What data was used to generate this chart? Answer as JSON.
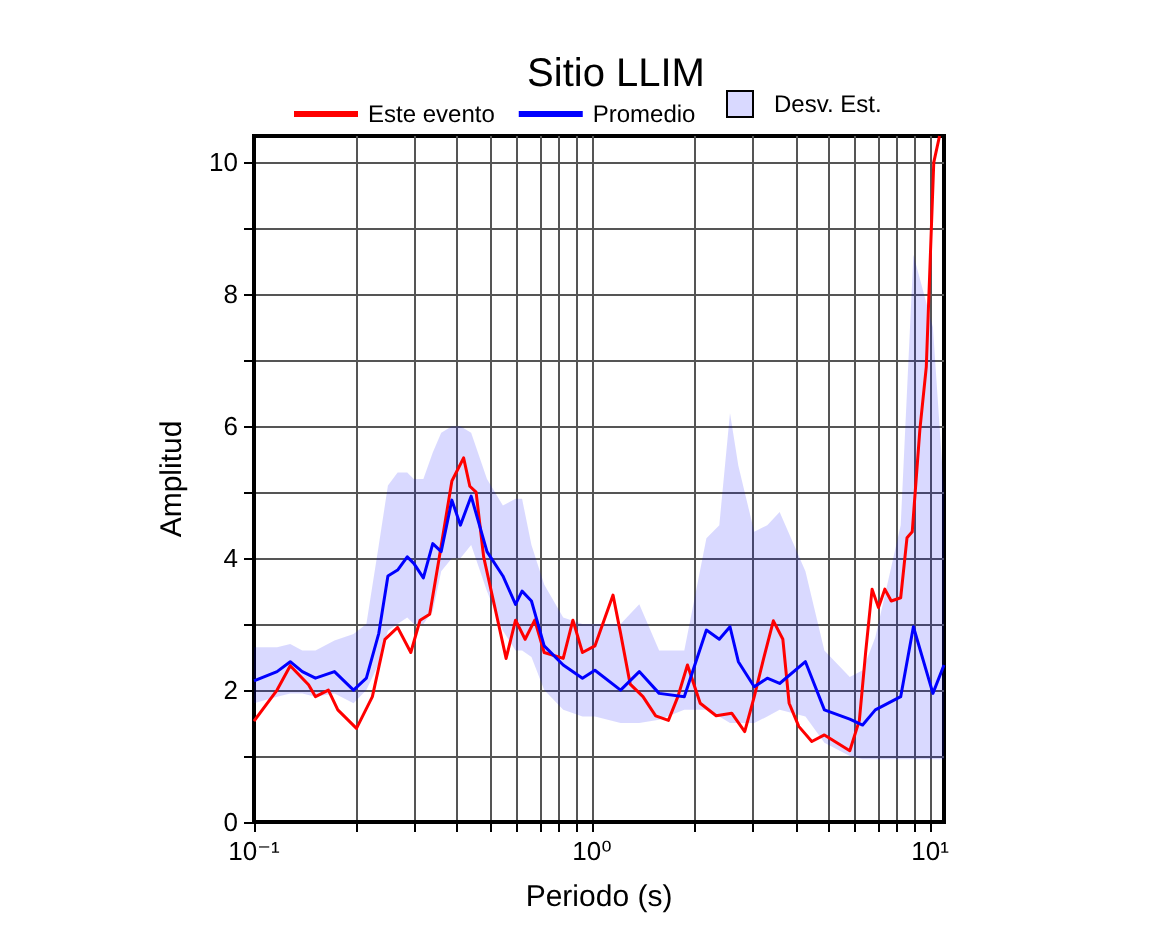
{
  "chart_data": {
    "type": "line",
    "title": "Sitio LLIM",
    "xlabel": "Periodo (s)",
    "ylabel": "Amplitud",
    "log": "x",
    "grid": true,
    "legend": "top",
    "marker": "none",
    "line_style": "solid",
    "xlim": [
      0.1,
      11
    ],
    "ylim": [
      0,
      10.4
    ],
    "xticks": [
      {
        "value": 0.1,
        "label": "10⁻¹"
      },
      {
        "value": 0.2,
        "label": null
      },
      {
        "value": 0.3,
        "label": null
      },
      {
        "value": 0.4,
        "label": null
      },
      {
        "value": 0.5,
        "label": null
      },
      {
        "value": 0.6,
        "label": null
      },
      {
        "value": 0.7,
        "label": null
      },
      {
        "value": 0.8,
        "label": null
      },
      {
        "value": 0.9,
        "label": null
      },
      {
        "value": 1,
        "label": "10⁰"
      },
      {
        "value": 2,
        "label": null
      },
      {
        "value": 3,
        "label": null
      },
      {
        "value": 4,
        "label": null
      },
      {
        "value": 5,
        "label": null
      },
      {
        "value": 6,
        "label": null
      },
      {
        "value": 7,
        "label": null
      },
      {
        "value": 8,
        "label": null
      },
      {
        "value": 9,
        "label": null
      },
      {
        "value": 10,
        "label": "10¹"
      }
    ],
    "yticks": [
      0,
      {
        "value": 1,
        "label": null
      },
      2,
      {
        "value": 3,
        "label": null
      },
      4,
      {
        "value": 5,
        "label": null
      },
      6,
      {
        "value": 7,
        "label": null
      },
      8,
      {
        "value": 9,
        "label": null
      },
      10
    ],
    "series": [
      {
        "name": "Este evento",
        "color": "#ff0000",
        "x": [
          0.1,
          0.117,
          0.128,
          0.145,
          0.152,
          0.166,
          0.177,
          0.201,
          0.224,
          0.244,
          0.266,
          0.291,
          0.31,
          0.331,
          0.353,
          0.385,
          0.417,
          0.435,
          0.454,
          0.478,
          0.511,
          0.557,
          0.594,
          0.634,
          0.677,
          0.722,
          0.822,
          0.878,
          0.937,
          1.02,
          1.154,
          1.215,
          1.297,
          1.415,
          1.543,
          1.683,
          1.795,
          1.916,
          2.09,
          2.33,
          2.59,
          2.83,
          3.02,
          3.22,
          3.44,
          3.67,
          3.83,
          4.09,
          4.47,
          4.87,
          5.79,
          6.18,
          6.45,
          6.74,
          7.04,
          7.35,
          7.68,
          8.19,
          8.55,
          8.86,
          9.33,
          9.75,
          10.26,
          10.67
        ],
        "values": [
          1.53,
          2.0,
          2.37,
          2.08,
          1.9,
          2.0,
          1.7,
          1.42,
          1.9,
          2.77,
          2.95,
          2.57,
          3.06,
          3.15,
          4.0,
          5.17,
          5.52,
          5.09,
          5.0,
          4.02,
          3.35,
          2.48,
          3.06,
          2.77,
          3.06,
          2.57,
          2.48,
          3.06,
          2.57,
          2.67,
          3.44,
          2.86,
          2.09,
          1.9,
          1.61,
          1.54,
          1.9,
          2.38,
          1.8,
          1.61,
          1.65,
          1.37,
          1.9,
          2.48,
          3.05,
          2.77,
          1.8,
          1.45,
          1.22,
          1.32,
          1.08,
          1.54,
          2.57,
          3.53,
          3.25,
          3.53,
          3.35,
          3.4,
          4.31,
          4.4,
          5.94,
          6.9,
          10.0,
          10.4
        ]
      },
      {
        "name": "Promedio",
        "color": "#0000ff",
        "x": [
          0.1,
          0.117,
          0.128,
          0.139,
          0.152,
          0.173,
          0.197,
          0.215,
          0.234,
          0.249,
          0.266,
          0.284,
          0.297,
          0.317,
          0.338,
          0.358,
          0.385,
          0.408,
          0.439,
          0.489,
          0.545,
          0.594,
          0.621,
          0.662,
          0.722,
          0.822,
          0.937,
          1.02,
          1.215,
          1.38,
          1.58,
          1.875,
          2.18,
          2.38,
          2.56,
          2.71,
          3.02,
          3.3,
          3.59,
          4.28,
          4.87,
          5.79,
          6.32,
          6.89,
          8.19,
          8.93,
          10.2,
          11.0
        ],
        "values": [
          2.14,
          2.28,
          2.43,
          2.28,
          2.18,
          2.28,
          2.0,
          2.18,
          2.86,
          3.73,
          3.82,
          4.02,
          3.92,
          3.7,
          4.22,
          4.1,
          4.88,
          4.5,
          4.94,
          4.1,
          3.73,
          3.3,
          3.5,
          3.35,
          2.67,
          2.38,
          2.18,
          2.3,
          2.0,
          2.28,
          1.95,
          1.9,
          2.91,
          2.77,
          2.96,
          2.43,
          2.05,
          2.18,
          2.1,
          2.43,
          1.7,
          1.56,
          1.47,
          1.7,
          1.9,
          2.96,
          1.95,
          2.38
        ],
        "lower": [
          1.8,
          1.9,
          1.95,
          1.95,
          1.9,
          1.95,
          1.8,
          2.0,
          2.4,
          2.9,
          3.0,
          3.1,
          3.0,
          3.0,
          3.2,
          3.8,
          4.0,
          4.0,
          4.2,
          3.5,
          2.9,
          2.6,
          2.6,
          2.5,
          2.0,
          1.7,
          1.6,
          1.6,
          1.5,
          1.5,
          1.55,
          1.7,
          1.7,
          1.6,
          1.5,
          1.5,
          1.5,
          1.6,
          1.7,
          1.6,
          1.2,
          1.0,
          0.95,
          0.95,
          0.95,
          0.95,
          0.95,
          0.95
        ],
        "upper": [
          2.65,
          2.65,
          2.7,
          2.6,
          2.6,
          2.75,
          2.85,
          3.0,
          4.2,
          5.1,
          5.3,
          5.3,
          5.2,
          5.2,
          5.6,
          5.9,
          6.0,
          6.0,
          5.9,
          5.2,
          4.8,
          4.9,
          4.9,
          4.2,
          3.6,
          3.1,
          3.0,
          3.0,
          3.0,
          3.3,
          2.6,
          2.6,
          4.3,
          4.5,
          6.2,
          5.4,
          4.4,
          4.5,
          4.7,
          3.8,
          2.6,
          2.2,
          2.3,
          2.8,
          4.5,
          8.6,
          7.5,
          5.0
        ]
      }
    ],
    "annotations": [
      "Desv. Est."
    ]
  }
}
